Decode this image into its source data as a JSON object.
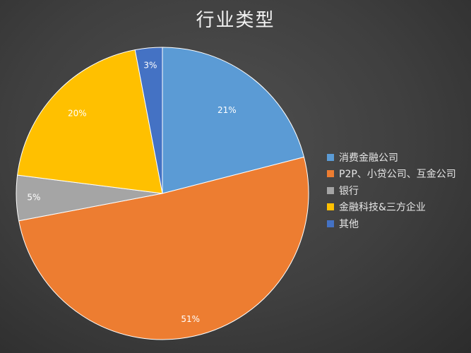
{
  "chart_data": {
    "type": "pie",
    "title": "行业类型",
    "categories": [
      "消费金融公司",
      "P2P、小贷公司、互金公司",
      "银行",
      "金融科技&三方企业",
      "其他"
    ],
    "values": [
      21,
      51,
      5,
      20,
      3
    ],
    "data_labels": [
      "21%",
      "51%",
      "5%",
      "20%",
      "3%"
    ],
    "colors": [
      "#5b9bd5",
      "#ed7d31",
      "#a5a5a5",
      "#ffc000",
      "#4472c4"
    ],
    "legend_position": "right",
    "start_angle_deg": 0,
    "direction": "clockwise"
  }
}
